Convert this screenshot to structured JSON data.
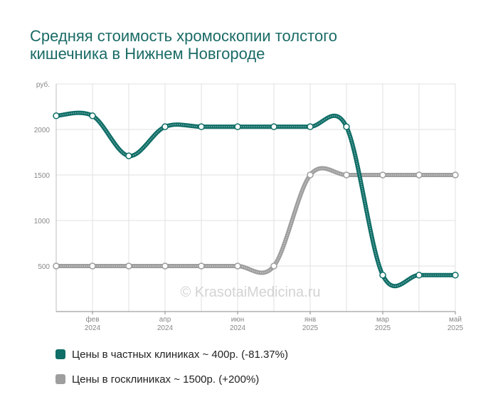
{
  "chart_data": {
    "type": "line",
    "title_lines": [
      "Средняя стоимость хромоскопии толстого",
      "кишечника в Нижнем Новгороде"
    ],
    "y_unit": "руб.",
    "y_ticks": [
      "500",
      "1000",
      "1500",
      "2000"
    ],
    "ylim": [
      0,
      2500
    ],
    "x_tick_labels": [
      {
        "month": "фев",
        "year": "2024"
      },
      {
        "month": "апр",
        "year": "2024"
      },
      {
        "month": "июн",
        "year": "2024"
      },
      {
        "month": "янв",
        "year": "2025"
      },
      {
        "month": "мар",
        "year": "2025"
      },
      {
        "month": "май",
        "year": "2025"
      }
    ],
    "x": [
      "2024-01",
      "2024-02",
      "2024-03",
      "2024-04",
      "2024-05",
      "2024-06",
      "2024-07",
      "2025-01",
      "2025-02",
      "2025-03",
      "2025-04",
      "2025-05"
    ],
    "series": [
      {
        "name": "Цены в частных клиниках",
        "color": "#0f6e67",
        "values": [
          2150,
          2150,
          1710,
          2030,
          2030,
          2030,
          2030,
          2030,
          2030,
          400,
          400,
          400
        ]
      },
      {
        "name": "Цены в госклиниках",
        "color": "#9e9e9e",
        "values": [
          500,
          500,
          500,
          500,
          500,
          500,
          500,
          1500,
          1500,
          1500,
          1500,
          1500
        ]
      }
    ],
    "legend": [
      {
        "label": "Цены в частных клиниках ~ 400р. (-81.37%)",
        "color": "#0f6e67"
      },
      {
        "label": "Цены в госклиниках ~ 1500р. (+200%)",
        "color": "#9e9e9e"
      }
    ],
    "watermark": "© KrasotaiMedicina.ru",
    "grid": true,
    "legend_position": "bottom"
  }
}
